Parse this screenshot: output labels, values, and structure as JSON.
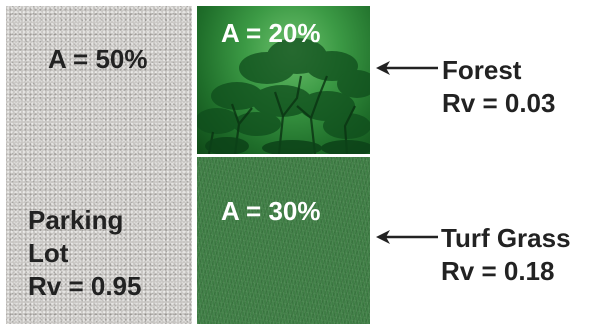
{
  "regions": [
    {
      "id": "parking",
      "area_label": "A = 50%",
      "name_lines": [
        "Parking",
        "Lot"
      ],
      "rv_label": "Rv = 0.95"
    },
    {
      "id": "forest",
      "area_label": "A = 20%",
      "name": "Forest",
      "rv_label": "Rv = 0.03"
    },
    {
      "id": "turf",
      "area_label": "A = 30%",
      "name": "Turf Grass",
      "rv_label": "Rv = 0.18"
    }
  ],
  "colors": {
    "parking": "#c9c7c4",
    "forest": "#2f8a3a",
    "turf": "#3f7e45",
    "text_dark": "#222222",
    "text_light": "#ffffff"
  },
  "icons": [
    "forest-trees-illustration",
    "left-arrow-icon"
  ]
}
